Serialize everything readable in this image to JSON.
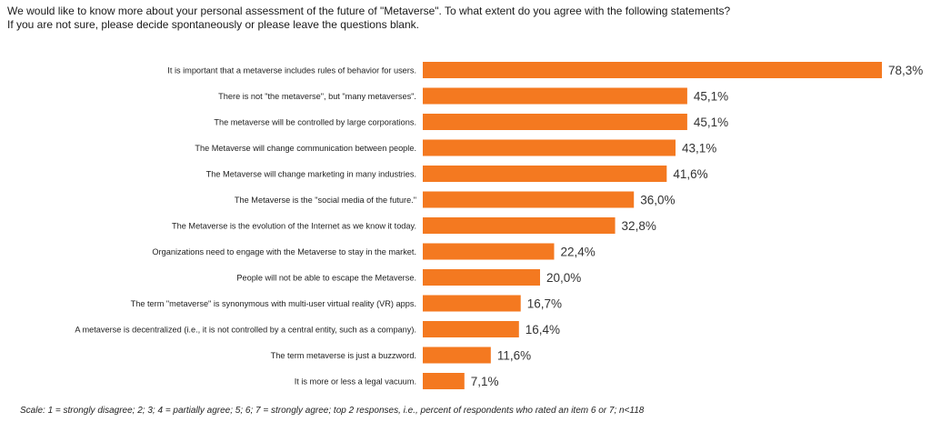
{
  "question": {
    "line1": "We would like to know more about your personal assessment of the future of \"Metaverse\". To what extent do you agree with the following statements?",
    "line2": "If you are not sure, please decide spontaneously or please leave the questions blank."
  },
  "footnote": "Scale: 1 = strongly disagree; 2; 3; 4 = partially agree; 5; 6; 7 = strongly agree; top 2 responses, i.e., percent of respondents who rated an item 6 or 7; n<118",
  "colors": {
    "bar": "#F47920",
    "text": "#222222"
  },
  "chart_data": {
    "type": "bar",
    "orientation": "horizontal",
    "categories": [
      "It is important that a metaverse includes rules of behavior for users.",
      "There is not \"the metaverse\", but \"many metaverses\".",
      "The metaverse will be controlled by large corporations.",
      "The Metaverse will change communication between people.",
      "The Metaverse will change marketing in many industries.",
      "The Metaverse is the \"social media of the future.\"",
      "The Metaverse is the evolution of the Internet as we know it today.",
      "Organizations need to engage with the Metaverse to stay in the market.",
      "People will not be able to escape the Metaverse.",
      "The term \"metaverse\" is synonymous with multi-user virtual reality (VR) apps.",
      "A metaverse is decentralized (i.e., it is not controlled by a central entity, such as a company).",
      "The term metaverse is just a buzzword.",
      "It is more or less a legal vacuum."
    ],
    "values": [
      78.3,
      45.1,
      45.1,
      43.1,
      41.6,
      36.0,
      32.8,
      22.4,
      20.0,
      16.7,
      16.4,
      11.6,
      7.1
    ],
    "value_labels": [
      "78,3%",
      "45,1%",
      "45,1%",
      "43,1%",
      "41,6%",
      "36,0%",
      "32,8%",
      "22,4%",
      "20,0%",
      "16,7%",
      "16,4%",
      "11,6%",
      "7,1%"
    ],
    "xlim": [
      0,
      100
    ],
    "grid": false,
    "legend": "none"
  }
}
